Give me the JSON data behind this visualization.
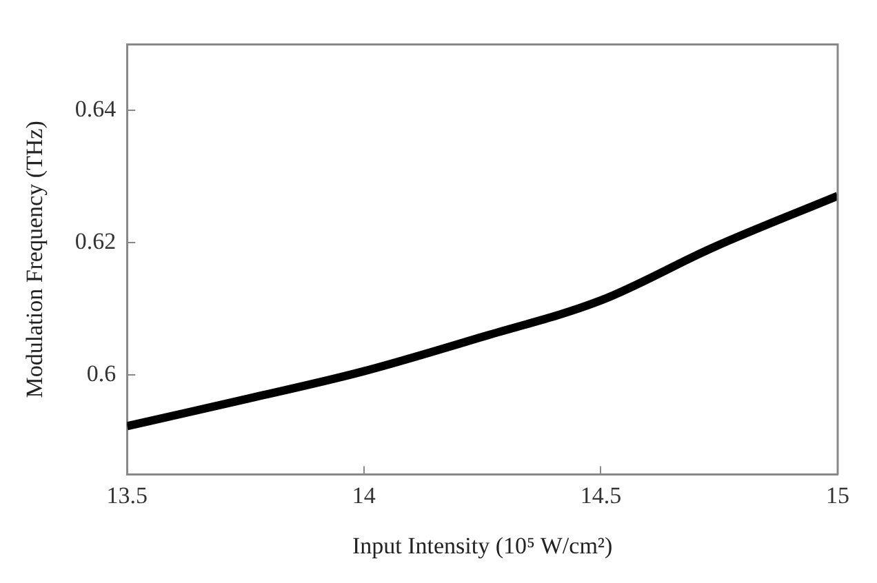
{
  "chart_data": {
    "type": "line",
    "xlabel": "Input Intensity (10⁵ W/cm²)",
    "ylabel": "Modulation Frequency (THz)",
    "series": [
      {
        "color": "#000000",
        "x": [
          13.5,
          13.74,
          14,
          14.25,
          14.5,
          14.74,
          15
        ],
        "values": [
          0.5923,
          0.5962,
          0.6006,
          0.6058,
          0.6113,
          0.6194,
          0.6271
        ]
      }
    ],
    "xlim": [
      13.5,
      15
    ],
    "ylim": [
      0.585,
      0.65
    ],
    "xticks": [
      13.5,
      14,
      14.5,
      15
    ],
    "yticks": [
      0.6,
      0.62,
      0.64
    ],
    "grid": false,
    "legend": false,
    "marker": "none",
    "line_style": "solid"
  }
}
